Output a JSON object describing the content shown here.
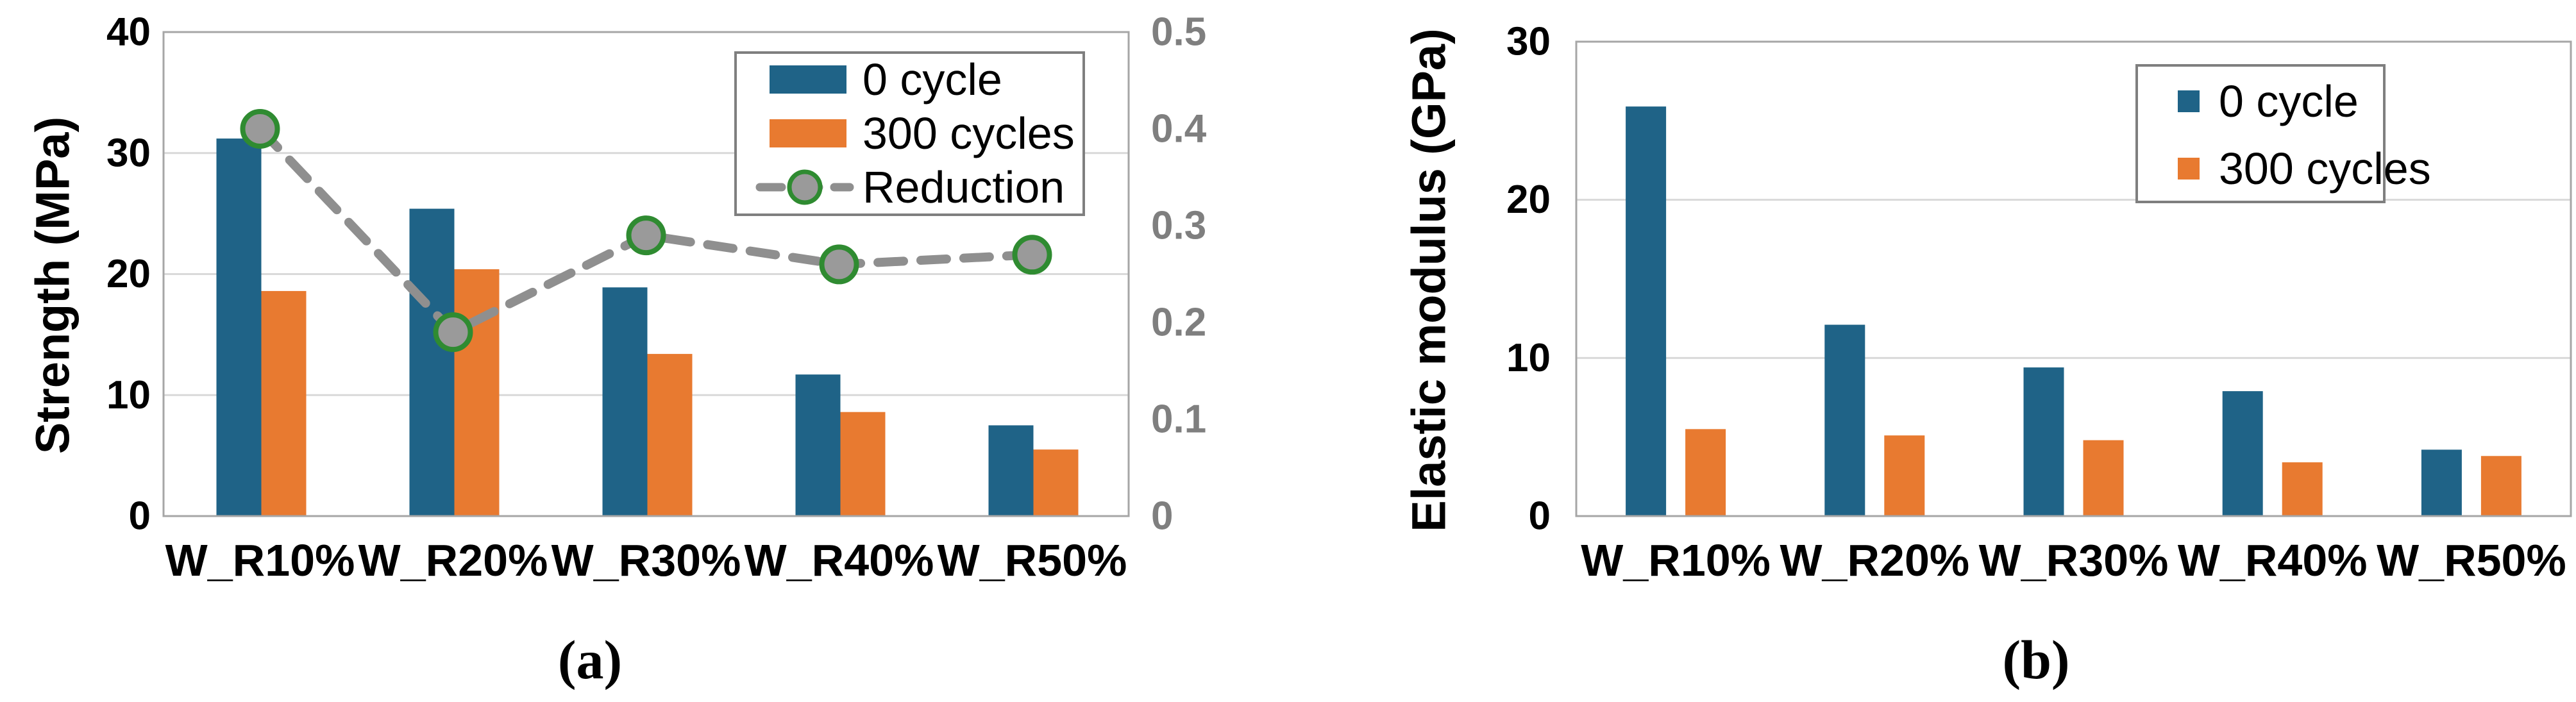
{
  "page": {
    "background": "#ffffff"
  },
  "colors": {
    "series_blue": "#1F6387",
    "series_orange": "#E87A30",
    "reduction_line": "#8F8F8F",
    "marker_fill": "#9A9A9A",
    "marker_ring": "#2F8B31",
    "gridline": "#D9D9D9",
    "plot_border": "#A6A6A6",
    "legend_border": "#7F7F7F",
    "tick_text": "#000000",
    "secondary_tick_text": "#7F7F7F",
    "category_text": "#000000",
    "legend_text": "#000000",
    "caption_text": "#000000"
  },
  "chart_data": [
    {
      "id": "a",
      "type": "bar",
      "caption": "(a)",
      "ylabel": "Strength (MPa)",
      "categories": [
        "W_R10%",
        "W_R20%",
        "W_R30%",
        "W_R40%",
        "W_R50%"
      ],
      "series": [
        {
          "name": "0 cycle",
          "type": "bar",
          "axis": "left",
          "values": [
            31.2,
            25.4,
            18.9,
            11.7,
            7.5
          ]
        },
        {
          "name": "300 cycles",
          "type": "bar",
          "axis": "left",
          "values": [
            18.6,
            20.4,
            13.4,
            8.6,
            5.5
          ]
        },
        {
          "name": "Reduction",
          "type": "line",
          "axis": "right",
          "values": [
            0.4,
            0.19,
            0.29,
            0.26,
            0.27
          ]
        }
      ],
      "y_left": {
        "min": 0,
        "max": 40,
        "step": 10,
        "ticks": [
          "0",
          "10",
          "20",
          "30",
          "40"
        ]
      },
      "y_right": {
        "min": 0,
        "max": 0.5,
        "step": 0.1,
        "ticks": [
          "0",
          "0.1",
          "0.2",
          "0.3",
          "0.4",
          "0.5"
        ]
      },
      "legend": {
        "entries": [
          "0 cycle",
          "300 cycles",
          "Reduction"
        ],
        "position": "top-right"
      },
      "grid": true,
      "xlabel": ""
    },
    {
      "id": "b",
      "type": "bar",
      "caption": "(b)",
      "ylabel": "Elastic modulus (GPa)",
      "categories": [
        "W_R10%",
        "W_R20%",
        "W_R30%",
        "W_R40%",
        "W_R50%"
      ],
      "series": [
        {
          "name": "0 cycle",
          "type": "bar",
          "axis": "left",
          "values": [
            25.9,
            12.1,
            9.4,
            7.9,
            4.2
          ]
        },
        {
          "name": "300 cycles",
          "type": "bar",
          "axis": "left",
          "values": [
            5.5,
            5.1,
            4.8,
            3.4,
            3.8
          ]
        }
      ],
      "y_left": {
        "min": 0,
        "max": 30,
        "step": 10,
        "ticks": [
          "0",
          "10",
          "20",
          "30"
        ]
      },
      "legend": {
        "entries": [
          "0 cycle",
          "300 cycles"
        ],
        "position": "top-right"
      },
      "grid": true,
      "xlabel": ""
    }
  ]
}
